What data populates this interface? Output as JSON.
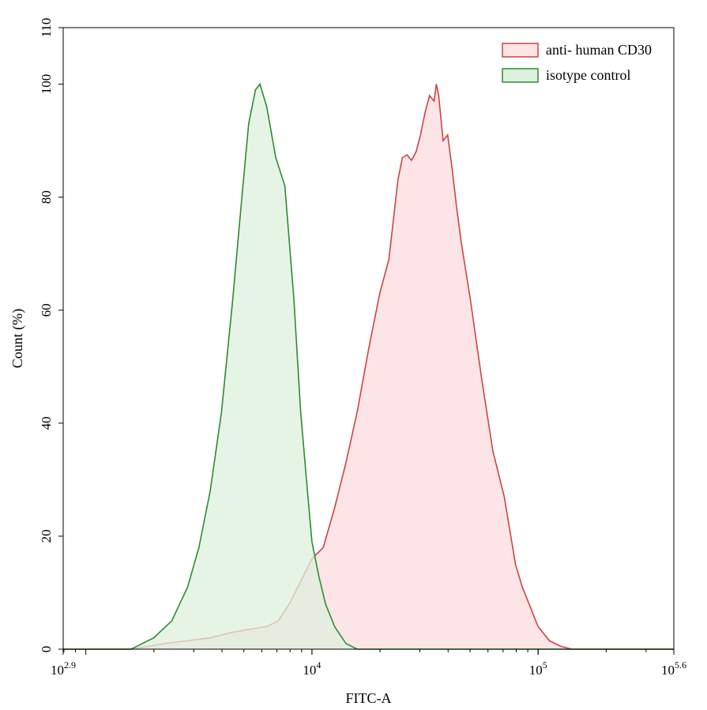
{
  "chart_data": {
    "type": "area",
    "xlabel": "FITC-A",
    "ylabel": "Count (%)",
    "xscale": "log10",
    "xlim_exponent": [
      2.9,
      5.6
    ],
    "ylim": [
      0,
      110
    ],
    "yticks": [
      0,
      20,
      40,
      60,
      80,
      100,
      110
    ],
    "xticks": [
      {
        "base": "10",
        "exp": "2.9",
        "value": 2.9
      },
      {
        "base": "10",
        "exp": "4",
        "value": 4
      },
      {
        "base": "10",
        "exp": "5",
        "value": 5
      },
      {
        "base": "10",
        "exp": "5.6",
        "value": 5.6
      }
    ],
    "grid": false,
    "legend_position": "top-right",
    "series": [
      {
        "name": "anti- human CD30",
        "stroke": "#cc4444",
        "fill": "#fde4e6",
        "log10_x": [
          2.9,
          3.2,
          3.35,
          3.45,
          3.55,
          3.65,
          3.72,
          3.8,
          3.85,
          3.9,
          3.95,
          4.0,
          4.05,
          4.1,
          4.15,
          4.2,
          4.25,
          4.3,
          4.34,
          4.36,
          4.38,
          4.4,
          4.42,
          4.44,
          4.46,
          4.48,
          4.5,
          4.52,
          4.54,
          4.55,
          4.56,
          4.58,
          4.6,
          4.62,
          4.64,
          4.66,
          4.7,
          4.75,
          4.8,
          4.85,
          4.9,
          4.93,
          4.96,
          5.0,
          5.05,
          5.1,
          5.15,
          5.2,
          5.3,
          5.6
        ],
        "y": [
          0,
          0,
          1,
          1.5,
          2,
          3,
          3.5,
          4,
          5,
          8,
          12,
          16,
          18,
          25,
          33,
          42,
          53,
          63,
          69,
          76,
          83,
          87,
          87.5,
          86.5,
          88,
          91,
          95,
          98,
          97,
          100,
          98,
          90,
          91,
          85,
          78,
          72,
          62,
          48,
          35,
          27,
          15,
          11,
          8,
          4,
          1.5,
          0.5,
          0,
          0,
          0,
          0
        ]
      },
      {
        "name": "isotype control",
        "stroke": "#2e8b2e",
        "fill": "#ddf0dd",
        "log10_x": [
          2.9,
          3.1,
          3.2,
          3.3,
          3.38,
          3.45,
          3.5,
          3.55,
          3.6,
          3.65,
          3.69,
          3.72,
          3.75,
          3.77,
          3.8,
          3.84,
          3.88,
          3.92,
          3.95,
          3.98,
          4.0,
          4.03,
          4.06,
          4.1,
          4.15,
          4.2,
          4.3,
          5.6
        ],
        "y": [
          0,
          0,
          0,
          2,
          5,
          11,
          18,
          28,
          42,
          62,
          80,
          93,
          99,
          100,
          96,
          87,
          82,
          62,
          42,
          28,
          19,
          13,
          8,
          4,
          1,
          0,
          0,
          0
        ]
      }
    ]
  }
}
